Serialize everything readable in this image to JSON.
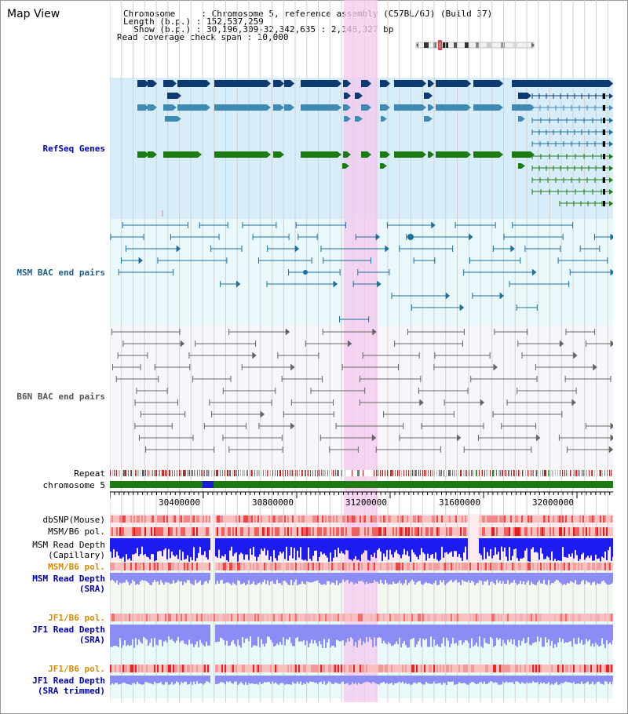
{
  "title": "Map View",
  "info": {
    "chromosome_line": "Chromosome     : Chromosome 5, reference assembly (C57BL/6J) (Build 37)",
    "length_line": "Length (b.p.) : 152,537,259",
    "show_line": "  Show (b.p.) : 30,196,309-32,342,635 : 2,146,327 bp",
    "coverage_line": "Read coverage check span : 10,000"
  },
  "tracks": {
    "refseq": "RefSeq Genes",
    "msm_bac": "MSM BAC end pairs",
    "b6n_bac": "B6N BAC end pairs",
    "repeat": "Repeat",
    "chromosome": "chromosome 5",
    "dbsnp": "dbSNP(Mouse)",
    "msm_b6_pol_1": "MSM/B6 pol.",
    "msm_read_depth_cap_1": "MSM Read Depth",
    "msm_read_depth_cap_2": "(Capillary)",
    "msm_b6_pol_2": "MSM/B6 pol.",
    "msm_read_depth_sra_1": "MSM Read Depth",
    "msm_read_depth_sra_2": "(SRA)",
    "jf1_b6_pol_1": "JF1/B6 pol.",
    "jf1_read_depth_sra_1": "JF1 Read Depth",
    "jf1_read_depth_sra_2": "(SRA)",
    "jf1_b6_pol_2": "JF1/B6 pol.",
    "jf1_read_depth_trim_1": "JF1 Read Depth",
    "jf1_read_depth_trim_2": "(SRA trimmed)"
  },
  "ruler": {
    "ticks": [
      "30400000",
      "30800000",
      "31200000",
      "31600000",
      "32000000"
    ]
  },
  "colors": {
    "highlight": "#f6c8ee",
    "refseq_bg": "#d7eefa",
    "msm_bg": "#e8f8fb",
    "b6n_bg": "#f6f6fb",
    "gene_dark": "#0e3a72",
    "gene_mid": "#3f8bb3",
    "gene_green": "#1b7a12",
    "msm_line": "#1f6f9c",
    "b6n_line": "#666666",
    "depth_blue": "#1c1cf0",
    "depth_light": "#8c8cf5",
    "snp_red": "#e84848"
  }
}
